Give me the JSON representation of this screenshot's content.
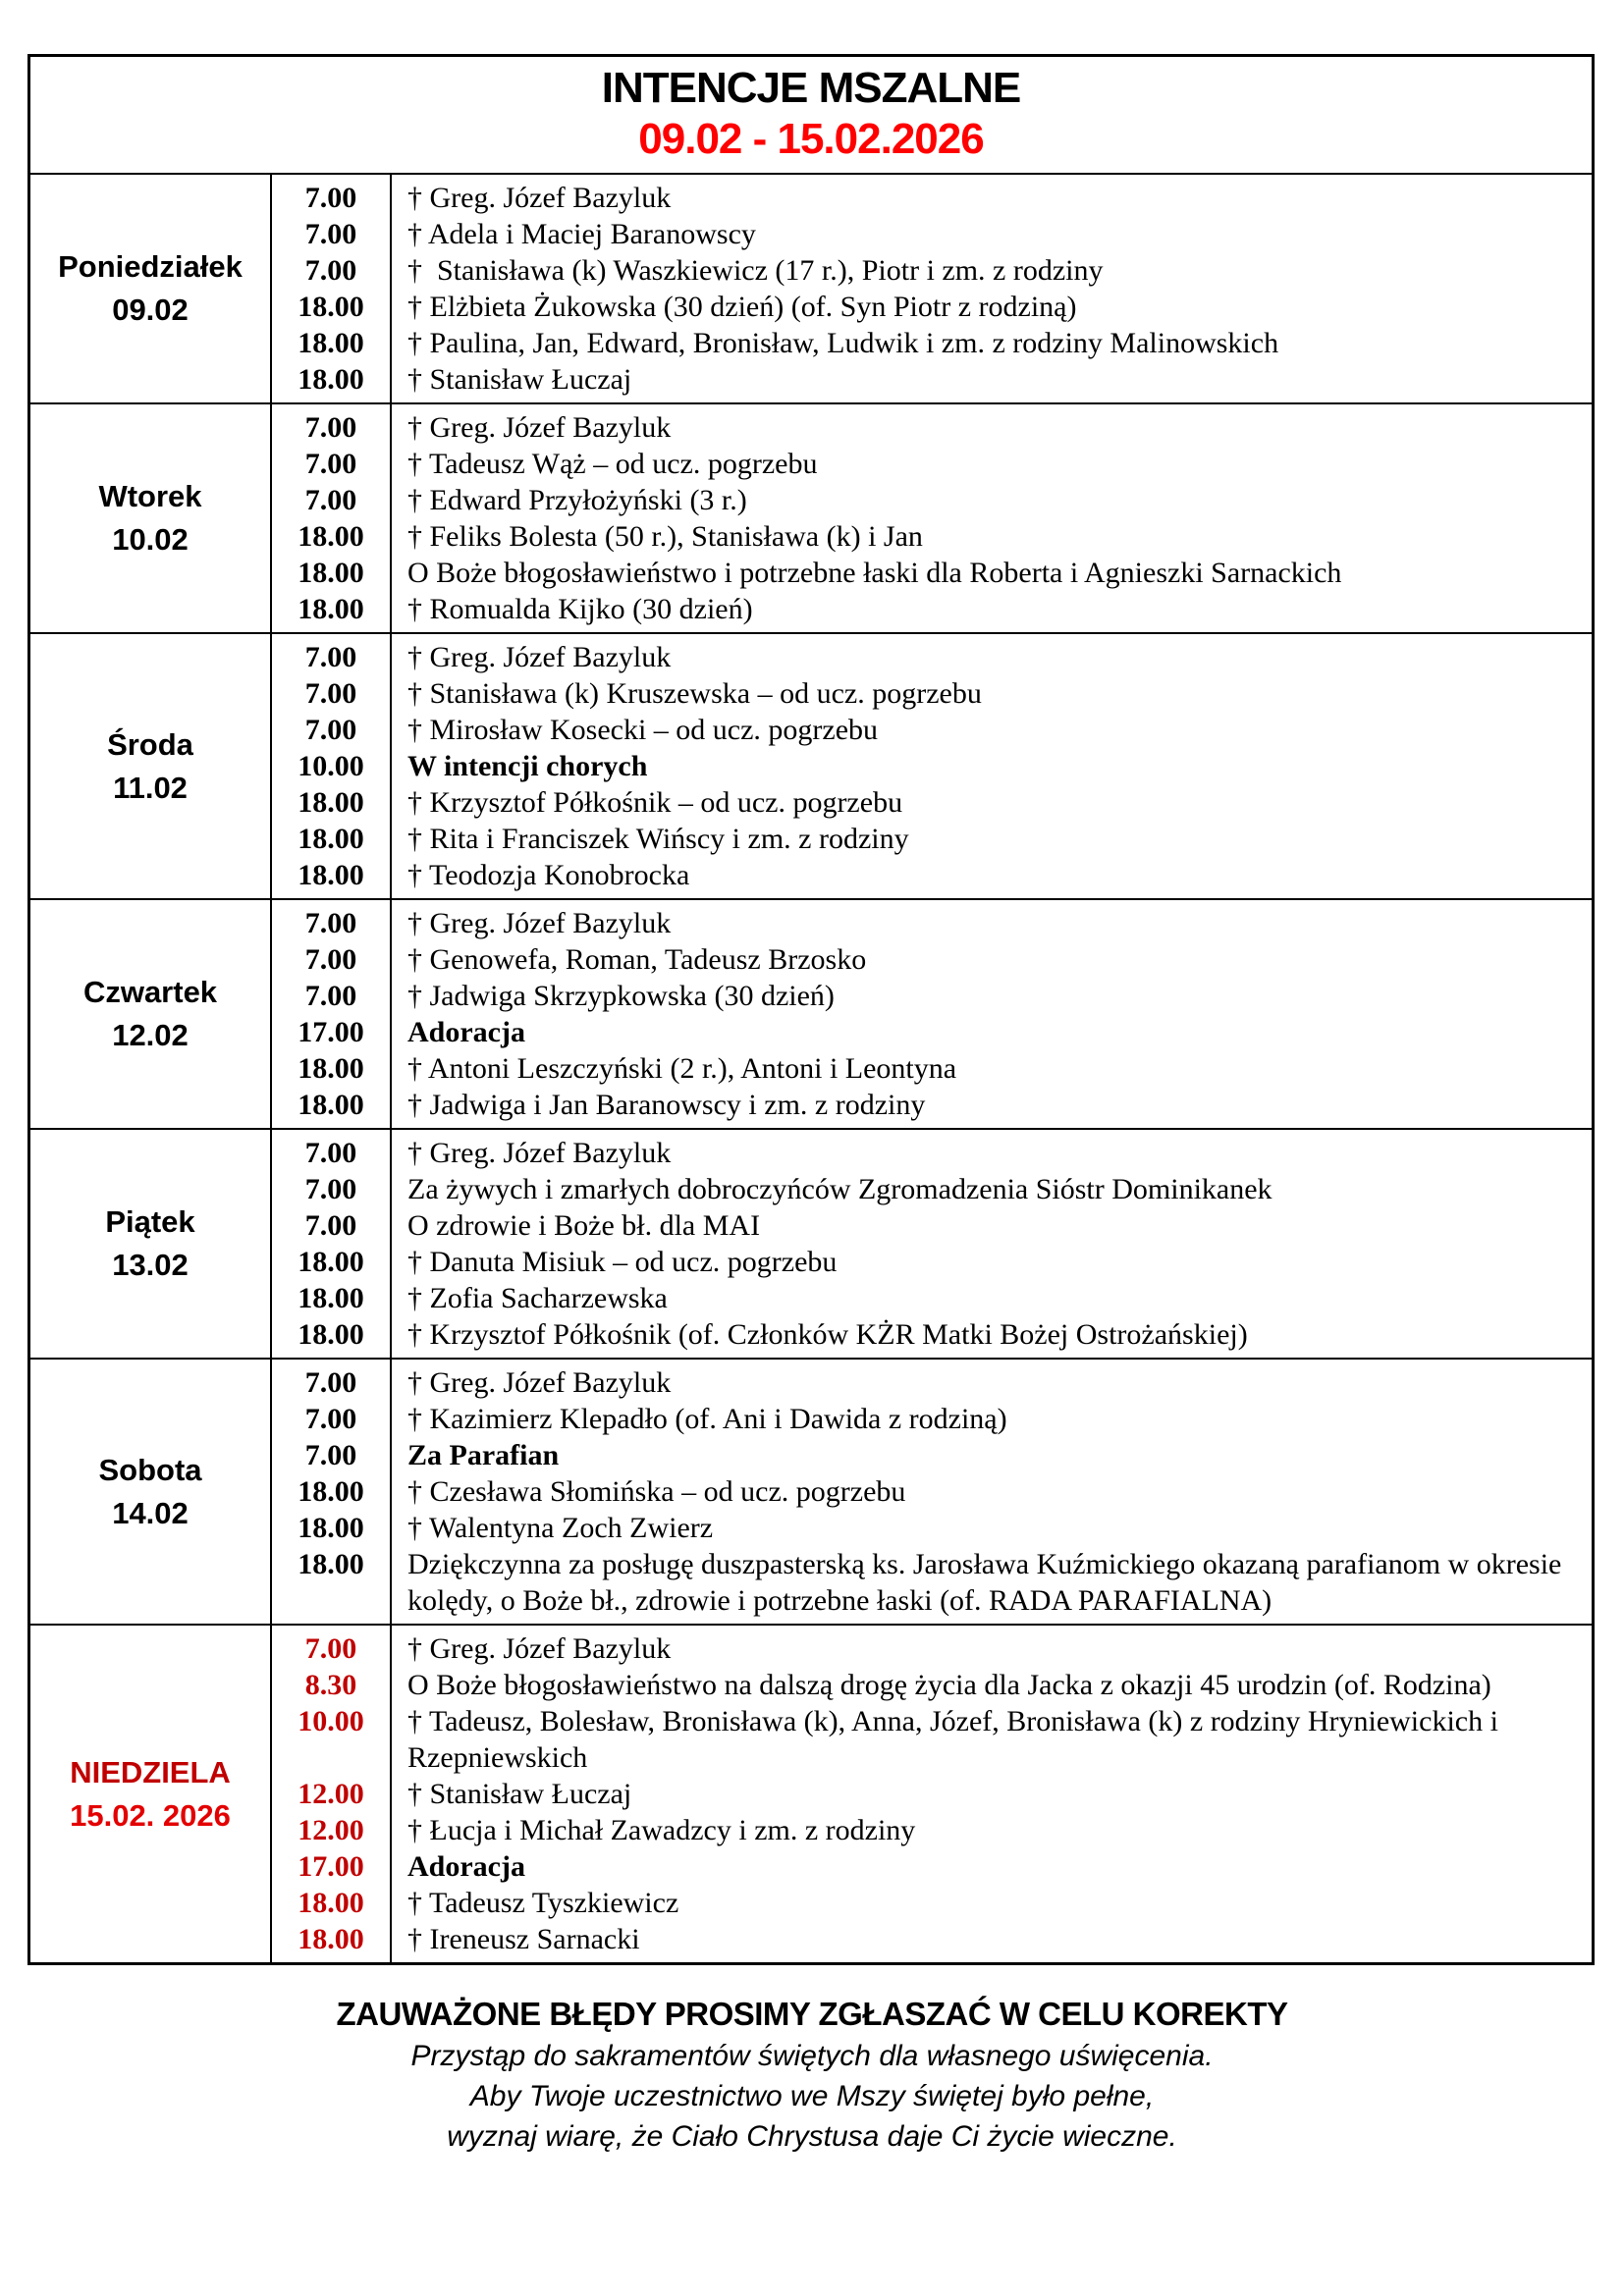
{
  "colors": {
    "bright_red": "#fe0000",
    "dark_red": "#c00000",
    "sunday_date_red": "#e30000",
    "border_black": "#000000"
  },
  "header": {
    "title": "INTENCJE MSZALNE",
    "date_range": "09.02 - 15.02.2026"
  },
  "schedule": {
    "days": [
      {
        "name": "Poniedziałek",
        "date": "09.02",
        "red": false,
        "entries": [
          {
            "time": "7.00",
            "text": "† Greg. Józef Bazyluk",
            "bold": false
          },
          {
            "time": "7.00",
            "text": "† Adela i Maciej Baranowscy",
            "bold": false
          },
          {
            "time": "7.00",
            "text": "†  Stanisława (k) Waszkiewicz (17 r.), Piotr i zm. z rodziny",
            "bold": false
          },
          {
            "time": "18.00",
            "text": "† Elżbieta Żukowska (30 dzień) (of. Syn Piotr z rodziną)",
            "bold": false
          },
          {
            "time": "18.00",
            "text": "† Paulina, Jan, Edward, Bronisław, Ludwik i zm. z rodziny Malinowskich",
            "bold": false
          },
          {
            "time": "18.00",
            "text": "† Stanisław Łuczaj",
            "bold": false
          }
        ]
      },
      {
        "name": "Wtorek",
        "date": "10.02",
        "red": false,
        "entries": [
          {
            "time": "7.00",
            "text": "† Greg. Józef Bazyluk",
            "bold": false
          },
          {
            "time": "7.00",
            "text": "† Tadeusz Wąż – od ucz. pogrzebu",
            "bold": false
          },
          {
            "time": "7.00",
            "text": "† Edward Przyłożyński (3 r.)",
            "bold": false
          },
          {
            "time": "18.00",
            "text": "† Feliks Bolesta (50 r.), Stanisława (k) i Jan",
            "bold": false
          },
          {
            "time": "18.00",
            "text": "O Boże błogosławieństwo i potrzebne łaski dla Roberta i Agnieszki Sarnackich",
            "bold": false
          },
          {
            "time": "18.00",
            "text": "† Romualda Kijko (30 dzień)",
            "bold": false
          }
        ]
      },
      {
        "name": "Środa",
        "date": "11.02",
        "red": false,
        "entries": [
          {
            "time": "7.00",
            "text": "† Greg. Józef Bazyluk",
            "bold": false
          },
          {
            "time": "7.00",
            "text": "† Stanisława (k) Kruszewska – od ucz. pogrzebu",
            "bold": false
          },
          {
            "time": "7.00",
            "text": "† Mirosław Kosecki – od ucz. pogrzebu",
            "bold": false
          },
          {
            "time": "10.00",
            "text": "W intencji chorych",
            "bold": true
          },
          {
            "time": "18.00",
            "text": "† Krzysztof Półkośnik – od ucz. pogrzebu",
            "bold": false
          },
          {
            "time": "18.00",
            "text": "† Rita i Franciszek Wińscy i zm. z rodziny",
            "bold": false
          },
          {
            "time": "18.00",
            "text": "† Teodozja Konobrocka",
            "bold": false
          }
        ]
      },
      {
        "name": "Czwartek",
        "date": "12.02",
        "red": false,
        "entries": [
          {
            "time": "7.00",
            "text": "† Greg. Józef Bazyluk",
            "bold": false
          },
          {
            "time": "7.00",
            "text": "† Genowefa, Roman, Tadeusz Brzosko",
            "bold": false
          },
          {
            "time": "7.00",
            "text": "† Jadwiga Skrzypkowska (30 dzień)",
            "bold": false
          },
          {
            "time": "17.00",
            "text": "Adoracja",
            "bold": true
          },
          {
            "time": "18.00",
            "text": "† Antoni Leszczyński (2 r.), Antoni i Leontyna",
            "bold": false
          },
          {
            "time": "18.00",
            "text": "† Jadwiga i Jan Baranowscy i zm. z rodziny",
            "bold": false
          }
        ]
      },
      {
        "name": "Piątek",
        "date": "13.02",
        "red": false,
        "entries": [
          {
            "time": "7.00",
            "text": "† Greg. Józef Bazyluk",
            "bold": false
          },
          {
            "time": "7.00",
            "text": "Za żywych i zmarłych dobroczyńców Zgromadzenia Sióstr Dominikanek",
            "bold": false
          },
          {
            "time": "7.00",
            "text": "O zdrowie i Boże bł. dla MAI",
            "bold": false
          },
          {
            "time": "18.00",
            "text": "† Danuta Misiuk – od ucz. pogrzebu",
            "bold": false
          },
          {
            "time": "18.00",
            "text": "† Zofia Sacharzewska",
            "bold": false
          },
          {
            "time": "18.00",
            "text": "† Krzysztof Półkośnik (of. Członków KŻR Matki Bożej Ostrożańskiej)",
            "bold": false
          }
        ]
      },
      {
        "name": "Sobota",
        "date": "14.02",
        "red": false,
        "entries": [
          {
            "time": "7.00",
            "text": "† Greg. Józef Bazyluk",
            "bold": false
          },
          {
            "time": "7.00",
            "text": "† Kazimierz Klepadło (of. Ani i Dawida z rodziną)",
            "bold": false
          },
          {
            "time": "7.00",
            "text": "Za Parafian",
            "bold": true
          },
          {
            "time": "18.00",
            "text": "† Czesława Słomińska – od ucz. pogrzebu",
            "bold": false
          },
          {
            "time": "18.00",
            "text": "† Walentyna Zoch Zwierz",
            "bold": false
          },
          {
            "time": "18.00",
            "text": "Dziękczynna za posługę duszpasterską ks. Jarosława Kuźmickiego okazaną parafianom w okresie kolędy, o Boże bł., zdrowie i potrzebne łaski (of. RADA PARAFIALNA)",
            "bold": false
          }
        ]
      },
      {
        "name": "NIEDZIELA",
        "date": "15.02. 2026",
        "red": true,
        "entries": [
          {
            "time": "7.00",
            "text": "† Greg. Józef Bazyluk",
            "bold": false
          },
          {
            "time": "8.30",
            "text": "O Boże błogosławieństwo na dalszą drogę życia dla Jacka z okazji 45 urodzin (of. Rodzina)",
            "bold": false
          },
          {
            "time": "10.00",
            "text": "† Tadeusz, Bolesław, Bronisława (k), Anna, Józef, Bronisława (k) z rodziny Hryniewickich i Rzepniewskich",
            "bold": false
          },
          {
            "time": "12.00",
            "text": "† Stanisław Łuczaj",
            "bold": false
          },
          {
            "time": "12.00",
            "text": "† Łucja i Michał Zawadzcy i zm. z rodziny",
            "bold": false
          },
          {
            "time": "17.00",
            "text": "Adoracja",
            "bold": true
          },
          {
            "time": "18.00",
            "text": "† Tadeusz Tyszkiewicz",
            "bold": false
          },
          {
            "time": "18.00",
            "text": "† Ireneusz Sarnacki",
            "bold": false
          }
        ]
      }
    ]
  },
  "footer": {
    "notice": "ZAUWAŻONE BŁĘDY PROSIMY ZGŁASZAĆ W CELU KOREKTY",
    "lines": [
      "Przystąp do sakramentów świętych dla własnego uświęcenia.",
      "Aby Twoje uczestnictwo we Mszy świętej było pełne,",
      "wyznaj wiarę, że Ciało Chrystusa daje Ci życie wieczne."
    ]
  }
}
